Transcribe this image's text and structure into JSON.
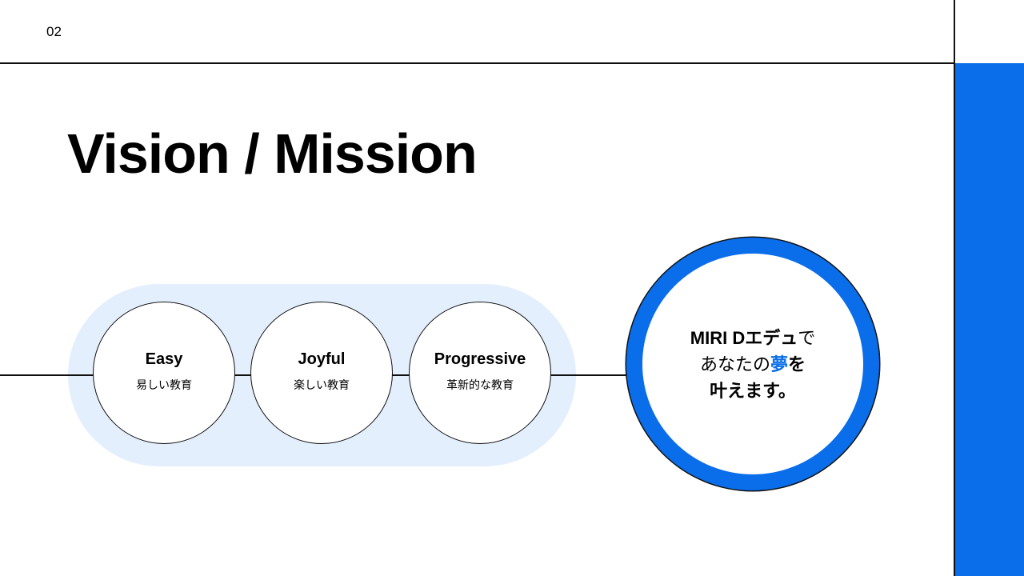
{
  "page_number": "02",
  "title": "Vision / Mission",
  "colors": {
    "accent": "#0A6EEA",
    "pill_bg": "#E3EFFC"
  },
  "values": [
    {
      "en": "Easy",
      "jp": "易しい教育"
    },
    {
      "en": "Joyful",
      "jp": "楽しい教育"
    },
    {
      "en": "Progressive",
      "jp": "革新的な教育"
    }
  ],
  "mission": {
    "line1_bold": "MIRI Dエデュ",
    "line1_rest": "で",
    "line2_normal": "あなたの",
    "line2_highlight": "夢",
    "line2_rest": "を",
    "line3": "叶えます。"
  }
}
